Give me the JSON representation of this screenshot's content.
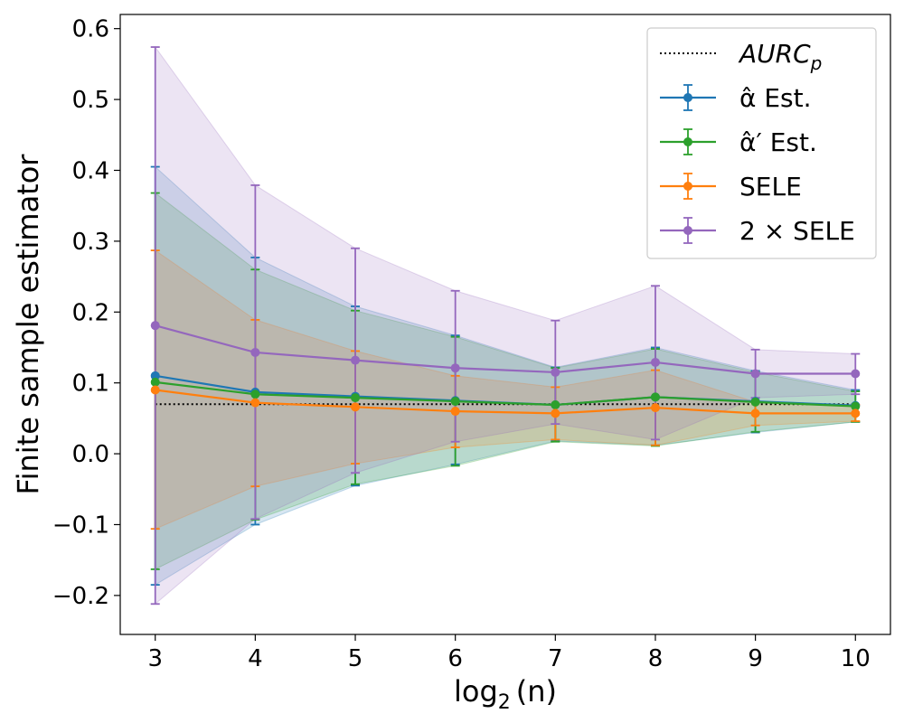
{
  "chart_data": {
    "type": "line",
    "xlabel": "log",
    "xlabel_sub": "2",
    "xlabel_arg": "(n)",
    "ylabel": "Finite sample estimator",
    "xlim": [
      2.65,
      10.35
    ],
    "ylim": [
      -0.255,
      0.62
    ],
    "x": [
      3,
      4,
      5,
      6,
      7,
      8,
      9,
      10
    ],
    "x_ticks": [
      3,
      4,
      5,
      6,
      7,
      8,
      9,
      10
    ],
    "y_ticks": [
      -0.2,
      -0.1,
      0.0,
      0.1,
      0.2,
      0.3,
      0.4,
      0.5,
      0.6
    ],
    "y_tick_labels": [
      "−0.2",
      "−0.1",
      "0.0",
      "0.1",
      "0.2",
      "0.3",
      "0.4",
      "0.5",
      "0.6"
    ],
    "grid": false,
    "legend_position": "top-right",
    "reference_line": {
      "name": "AURC",
      "name_sub": "p",
      "y": 0.07,
      "style": "dotted",
      "color": "#000000"
    },
    "series": [
      {
        "name": "α̂ Est.",
        "color": "#1f77b4",
        "values": [
          0.11,
          0.087,
          0.081,
          0.075,
          0.069,
          0.08,
          0.074,
          0.068
        ],
        "lower": [
          -0.185,
          -0.1,
          -0.045,
          -0.015,
          0.018,
          0.012,
          0.03,
          0.045
        ],
        "upper": [
          0.405,
          0.277,
          0.208,
          0.167,
          0.122,
          0.15,
          0.117,
          0.09
        ]
      },
      {
        "name": "α̂′ Est.",
        "color": "#2ca02c",
        "values": [
          0.101,
          0.084,
          0.079,
          0.074,
          0.069,
          0.08,
          0.073,
          0.067
        ],
        "lower": [
          -0.163,
          -0.093,
          -0.043,
          -0.017,
          0.017,
          0.011,
          0.031,
          0.045
        ],
        "upper": [
          0.368,
          0.26,
          0.202,
          0.165,
          0.121,
          0.148,
          0.115,
          0.088
        ]
      },
      {
        "name": "SELE",
        "color": "#ff7f0e",
        "values": [
          0.09,
          0.072,
          0.066,
          0.06,
          0.057,
          0.065,
          0.057,
          0.057
        ],
        "lower": [
          -0.106,
          -0.046,
          -0.014,
          0.009,
          0.02,
          0.012,
          0.04,
          0.046
        ],
        "upper": [
          0.287,
          0.189,
          0.145,
          0.11,
          0.094,
          0.118,
          0.073,
          0.069
        ]
      },
      {
        "name": "2 × SELE",
        "color": "#9467bd",
        "values": [
          0.181,
          0.143,
          0.132,
          0.121,
          0.115,
          0.129,
          0.113,
          0.113
        ],
        "lower": [
          -0.212,
          -0.092,
          -0.027,
          0.017,
          0.042,
          0.02,
          0.079,
          0.084
        ],
        "upper": [
          0.574,
          0.379,
          0.29,
          0.23,
          0.188,
          0.237,
          0.147,
          0.141
        ]
      }
    ]
  }
}
